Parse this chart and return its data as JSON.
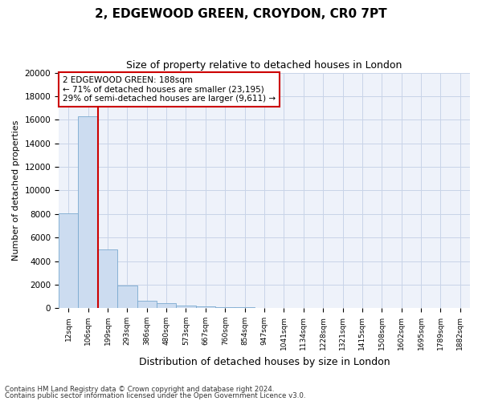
{
  "title": "2, EDGEWOOD GREEN, CROYDON, CR0 7PT",
  "subtitle": "Size of property relative to detached houses in London",
  "xlabel": "Distribution of detached houses by size in London",
  "ylabel": "Number of detached properties",
  "footnote1": "Contains HM Land Registry data © Crown copyright and database right 2024.",
  "footnote2": "Contains public sector information licensed under the Open Government Licence v3.0.",
  "annotation_title": "2 EDGEWOOD GREEN: 188sqm",
  "annotation_line1": "← 71% of detached houses are smaller (23,195)",
  "annotation_line2": "29% of semi-detached houses are larger (9,611) →",
  "bar_color": "#ccdcf0",
  "bar_edge_color": "#7aaad0",
  "vline_color": "#cc0000",
  "annotation_box_color": "#cc0000",
  "grid_color": "#c8d4e8",
  "background_color": "#eef2fa",
  "categories": [
    "12sqm",
    "106sqm",
    "199sqm",
    "293sqm",
    "386sqm",
    "480sqm",
    "573sqm",
    "667sqm",
    "760sqm",
    "854sqm",
    "947sqm",
    "1041sqm",
    "1134sqm",
    "1228sqm",
    "1321sqm",
    "1415sqm",
    "1508sqm",
    "1602sqm",
    "1695sqm",
    "1789sqm",
    "1882sqm"
  ],
  "values": [
    8050,
    16300,
    5000,
    1950,
    620,
    400,
    250,
    170,
    120,
    90,
    0,
    0,
    0,
    0,
    0,
    0,
    0,
    0,
    0,
    0,
    0
  ],
  "ylim": [
    0,
    20000
  ],
  "yticks": [
    0,
    2000,
    4000,
    6000,
    8000,
    10000,
    12000,
    14000,
    16000,
    18000,
    20000
  ],
  "vline_x_index": 1.5,
  "n_bars": 21,
  "fig_width": 6.0,
  "fig_height": 5.0,
  "dpi": 100
}
